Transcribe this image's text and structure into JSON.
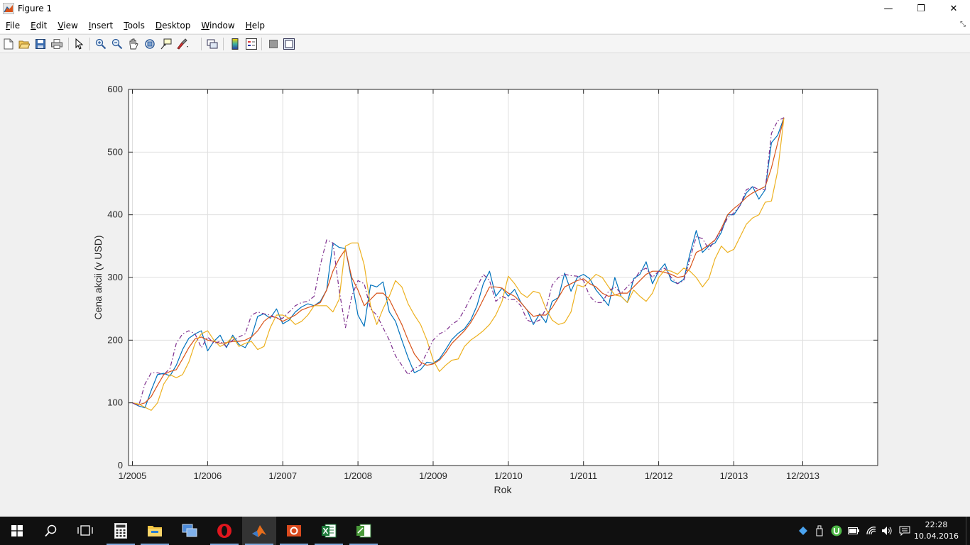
{
  "window": {
    "title": "Figure 1",
    "minimize": "—",
    "restore": "❐",
    "close": "✕"
  },
  "menu": {
    "items": [
      {
        "first": "F",
        "rest": "ile"
      },
      {
        "first": "E",
        "rest": "dit"
      },
      {
        "first": "V",
        "rest": "iew"
      },
      {
        "first": "I",
        "rest": "nsert"
      },
      {
        "first": "T",
        "rest": "ools"
      },
      {
        "first": "D",
        "rest": "esktop"
      },
      {
        "first": "W",
        "rest": "indow"
      },
      {
        "first": "H",
        "rest": "elp"
      }
    ],
    "overflow_icon": "chevron-icon"
  },
  "toolbar": {
    "buttons": [
      "new-figure-icon",
      "open-file-icon",
      "save-icon",
      "print-icon",
      "pointer-icon",
      "zoom-in-icon",
      "zoom-out-icon",
      "pan-icon",
      "rotate-3d-icon",
      "data-cursor-icon",
      "brush-icon",
      "link-plot-icon",
      "colorbar-icon",
      "legend-icon",
      "hide-plot-tools-icon",
      "show-plot-tools-icon"
    ]
  },
  "chart_data": {
    "type": "line",
    "title": "",
    "xlabel": "Rok",
    "ylabel": "Cena akcii (v USD)",
    "ylim": [
      0,
      600
    ],
    "yticks": [
      0,
      100,
      200,
      300,
      400,
      500,
      600
    ],
    "xlim": [
      0,
      104
    ],
    "xticks": [
      {
        "x": 0,
        "label": "1/2005"
      },
      {
        "x": 12,
        "label": "1/2006"
      },
      {
        "x": 24,
        "label": "1/2007"
      },
      {
        "x": 36,
        "label": "1/2008"
      },
      {
        "x": 48,
        "label": "1/2009"
      },
      {
        "x": 60,
        "label": "1/2010"
      },
      {
        "x": 72,
        "label": "1/2011"
      },
      {
        "x": 84,
        "label": "1/2012"
      },
      {
        "x": 96,
        "label": "1/2013"
      },
      {
        "x": 107,
        "label": "12/2013"
      }
    ],
    "grid": true,
    "series": [
      {
        "color": "#0072bd",
        "dash": "solid",
        "values": [
          100,
          95,
          92,
          120,
          145,
          147,
          143,
          160,
          185,
          203,
          210,
          215,
          183,
          198,
          208,
          188,
          208,
          193,
          188,
          205,
          238,
          242,
          235,
          250,
          226,
          232,
          245,
          253,
          258,
          255,
          262,
          280,
          355,
          348,
          346,
          295,
          240,
          222,
          288,
          285,
          293,
          245,
          230,
          200,
          172,
          148,
          153,
          165,
          163,
          170,
          185,
          201,
          211,
          218,
          232,
          255,
          290,
          310,
          270,
          283,
          270,
          281,
          260,
          248,
          225,
          242,
          228,
          262,
          268,
          307,
          278,
          300,
          305,
          298,
          280,
          268,
          255,
          300,
          270,
          260,
          298,
          305,
          325,
          290,
          310,
          322,
          295,
          290,
          297,
          338,
          375,
          340,
          350,
          355,
          372,
          400,
          400,
          415,
          435,
          445,
          425,
          440,
          515,
          527,
          555
        ]
      },
      {
        "color": "#d95319",
        "dash": "solid",
        "values": [
          100,
          97,
          100,
          110,
          128,
          145,
          150,
          153,
          170,
          188,
          202,
          205,
          200,
          198,
          195,
          196,
          198,
          198,
          200,
          205,
          215,
          230,
          238,
          236,
          230,
          235,
          240,
          248,
          252,
          255,
          260,
          280,
          310,
          330,
          345,
          300,
          280,
          255,
          265,
          275,
          275,
          265,
          245,
          225,
          200,
          178,
          165,
          160,
          162,
          168,
          180,
          195,
          205,
          215,
          228,
          245,
          265,
          285,
          285,
          283,
          275,
          270,
          260,
          248,
          238,
          240,
          240,
          252,
          268,
          285,
          290,
          295,
          298,
          290,
          285,
          275,
          270,
          272,
          275,
          275,
          285,
          295,
          305,
          310,
          310,
          308,
          305,
          300,
          302,
          315,
          340,
          345,
          352,
          360,
          378,
          400,
          410,
          418,
          428,
          435,
          440,
          445,
          475,
          515,
          555
        ]
      },
      {
        "color": "#edb120",
        "dash": "solid",
        "values": [
          100,
          98,
          93,
          88,
          100,
          130,
          145,
          140,
          145,
          165,
          195,
          210,
          215,
          200,
          190,
          195,
          205,
          190,
          195,
          198,
          185,
          190,
          220,
          240,
          240,
          235,
          225,
          230,
          240,
          255,
          255,
          255,
          245,
          265,
          350,
          355,
          355,
          320,
          255,
          225,
          250,
          270,
          295,
          285,
          258,
          240,
          225,
          200,
          168,
          150,
          160,
          168,
          170,
          190,
          200,
          207,
          215,
          225,
          240,
          262,
          302,
          290,
          275,
          268,
          278,
          275,
          250,
          232,
          225,
          228,
          245,
          288,
          285,
          295,
          305,
          300,
          285,
          272,
          270,
          260,
          280,
          270,
          262,
          275,
          300,
          312,
          310,
          305,
          315,
          310,
          300,
          285,
          298,
          330,
          350,
          340,
          345,
          365,
          385,
          395,
          400,
          420,
          422,
          470,
          555
        ]
      },
      {
        "color": "#7e2f8e",
        "dash": "dashdot",
        "values": [
          100,
          95,
          130,
          148,
          148,
          145,
          155,
          195,
          210,
          215,
          210,
          188,
          205,
          195,
          198,
          190,
          200,
          205,
          210,
          240,
          245,
          242,
          240,
          235,
          235,
          245,
          255,
          260,
          262,
          270,
          320,
          360,
          355,
          280,
          220,
          270,
          295,
          290,
          250,
          240,
          220,
          200,
          175,
          160,
          145,
          155,
          160,
          180,
          200,
          210,
          215,
          225,
          232,
          248,
          268,
          285,
          305,
          295,
          262,
          270,
          265,
          265,
          255,
          232,
          228,
          232,
          250,
          288,
          300,
          305,
          303,
          302,
          295,
          270,
          260,
          260,
          278,
          285,
          275,
          285,
          295,
          310,
          315,
          300,
          310,
          315,
          300,
          290,
          295,
          330,
          365,
          362,
          345,
          360,
          375,
          395,
          403,
          415,
          440,
          445,
          440,
          440,
          530,
          550,
          555
        ]
      }
    ]
  },
  "taskbar": {
    "apps": [
      "windows-start-icon",
      "search-icon",
      "task-view-icon",
      "calculator-icon",
      "file-explorer-icon",
      "network-app-icon",
      "opera-icon",
      "matlab-icon",
      "office-icon",
      "excel-icon",
      "project-icon"
    ],
    "time": "22:28",
    "date": "10.04.2016"
  }
}
